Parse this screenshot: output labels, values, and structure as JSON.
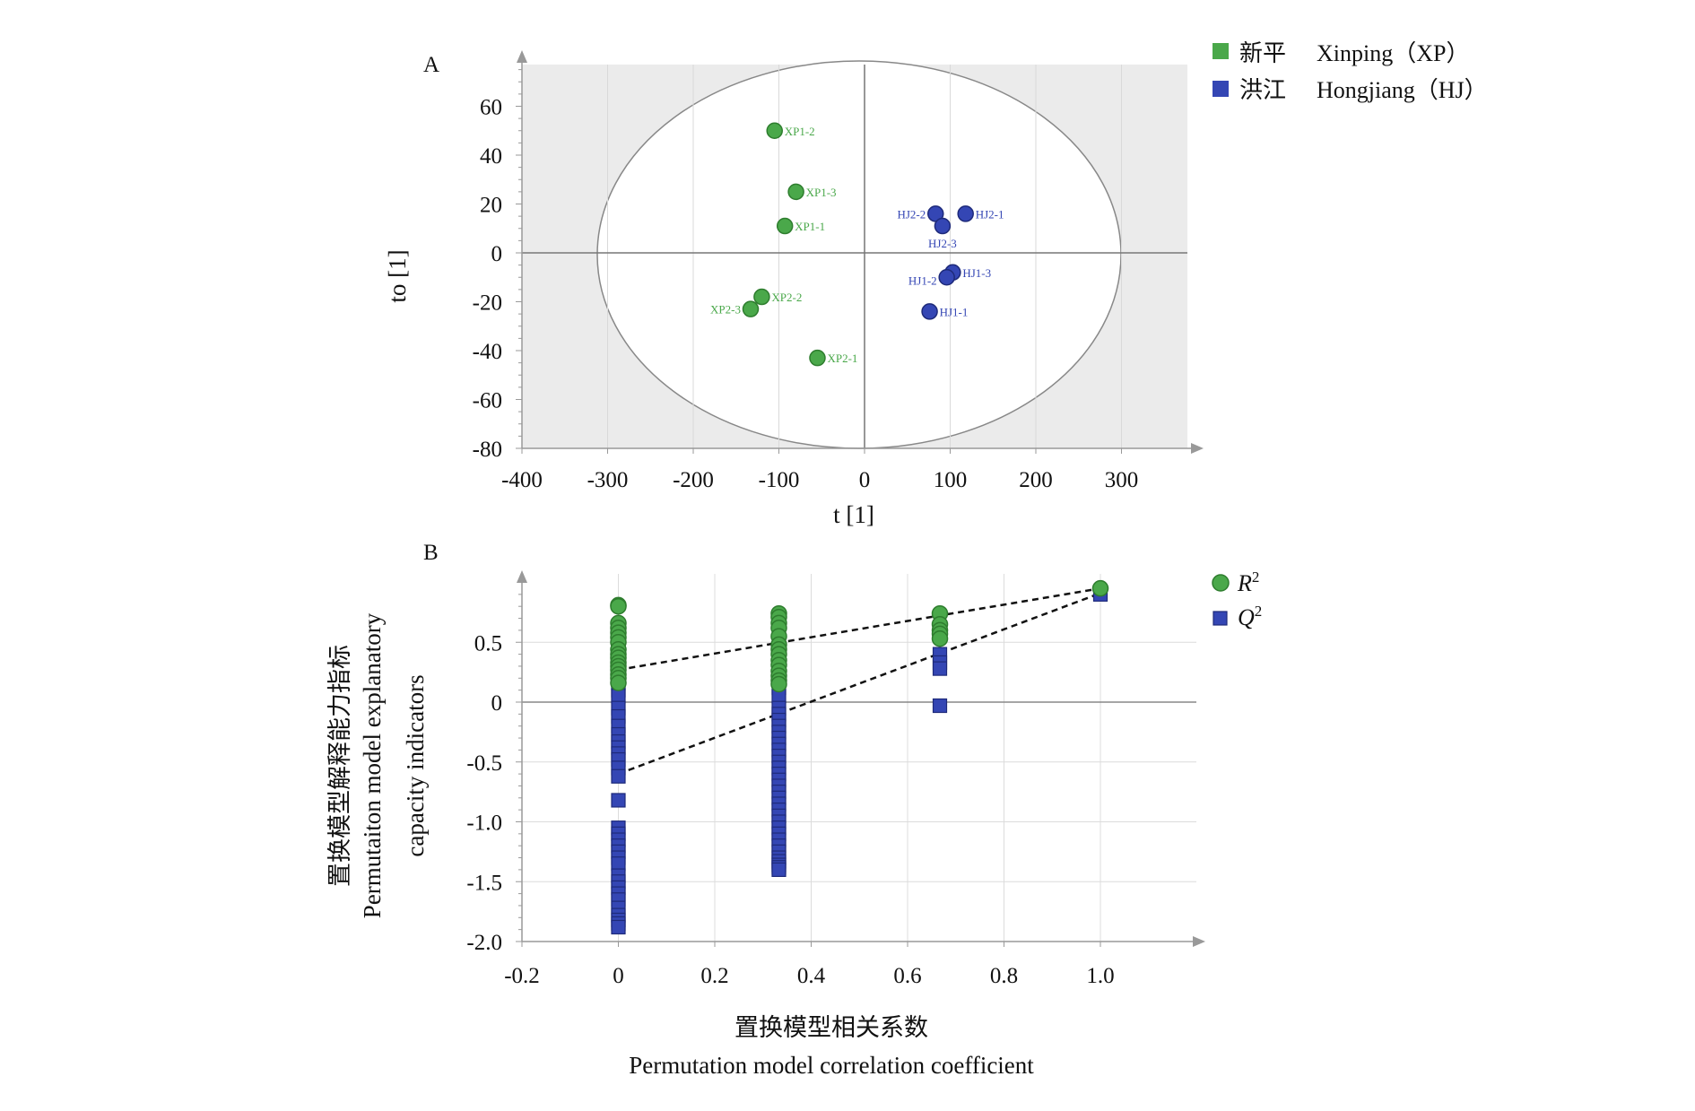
{
  "chart_data": [
    {
      "panel": "A",
      "type": "scatter",
      "xlabel": "t [1]",
      "ylabel": "to [1]",
      "xlim": [
        -400,
        400
      ],
      "ylim": [
        -80,
        80
      ],
      "xticks": [
        "-400",
        "-300",
        "-200",
        "-100",
        "0",
        "100",
        "200",
        "300"
      ],
      "yticks": [
        "60",
        "40",
        "20",
        "0",
        "-20",
        "-40",
        "-60",
        "-80"
      ],
      "legend": [
        {
          "label": "新平",
          "label2": "Xinping（XP）",
          "color": "#4aa84a"
        },
        {
          "label": "洪江",
          "label2": "Hongjiang（HJ）",
          "color": "#3446b4"
        }
      ],
      "series": [
        {
          "name": "Xinping",
          "color": "#4aa84a",
          "points": [
            {
              "label": "XP1-2",
              "x": -105,
              "y": 50
            },
            {
              "label": "XP1-3",
              "x": -80,
              "y": 25
            },
            {
              "label": "XP1-1",
              "x": -93,
              "y": 11
            },
            {
              "label": "XP2-2",
              "x": -120,
              "y": -18
            },
            {
              "label": "XP2-3",
              "x": -133,
              "y": -23
            },
            {
              "label": "XP2-1",
              "x": -55,
              "y": -43
            }
          ]
        },
        {
          "name": "Hongjiang",
          "color": "#3446b4",
          "points": [
            {
              "label": "HJ2-1",
              "x": 118,
              "y": 16
            },
            {
              "label": "HJ2-2",
              "x": 83,
              "y": 16
            },
            {
              "label": "HJ2-3",
              "x": 91,
              "y": 11
            },
            {
              "label": "HJ1-3",
              "x": 103,
              "y": -8
            },
            {
              "label": "HJ1-2",
              "x": 96,
              "y": -10
            },
            {
              "label": "HJ1-1",
              "x": 76,
              "y": -24
            }
          ]
        }
      ]
    },
    {
      "panel": "B",
      "type": "scatter",
      "xlabel": "置换模型相关系数",
      "xlabel2": "Permutation model correlation coefficient",
      "ylabel": "置换模型解释能力指标",
      "ylabel2": "Permutaiton model explanatory",
      "ylabel3": "capacity indicators",
      "xlim": [
        -0.2,
        1.2
      ],
      "ylim": [
        -2.0,
        1.0
      ],
      "xticks": [
        "-0.2",
        "0",
        "0.2",
        "0.4",
        "0.6",
        "0.8",
        "1.0"
      ],
      "yticks": [
        "0.5",
        "0",
        "-0.5",
        "-1.0",
        "-1.5",
        "-2.0"
      ],
      "legend": [
        {
          "label": "R",
          "sup": "2",
          "color": "#4aa84a",
          "marker": "circle"
        },
        {
          "label": "Q",
          "sup": "2",
          "color": "#3446b4",
          "marker": "square"
        }
      ],
      "series": [
        {
          "name": "R2",
          "color": "#4aa84a",
          "marker": "circle",
          "x": [
            0,
            0,
            0,
            0,
            0,
            0,
            0,
            0,
            0,
            0,
            0,
            0,
            0,
            0,
            0,
            0,
            0.333,
            0.333,
            0.333,
            0.333,
            0.333,
            0.333,
            0.333,
            0.333,
            0.333,
            0.333,
            0.333,
            0.333,
            0.333,
            0.333,
            0.667,
            0.667,
            0.667,
            0.667,
            0.667,
            1.0
          ],
          "y": [
            0.81,
            0.8,
            0.66,
            0.62,
            0.58,
            0.54,
            0.5,
            0.44,
            0.4,
            0.37,
            0.33,
            0.3,
            0.27,
            0.23,
            0.2,
            0.16,
            0.74,
            0.71,
            0.66,
            0.62,
            0.55,
            0.48,
            0.44,
            0.4,
            0.35,
            0.31,
            0.26,
            0.22,
            0.18,
            0.15,
            0.74,
            0.65,
            0.6,
            0.57,
            0.53,
            0.95
          ]
        },
        {
          "name": "Q2",
          "color": "#3446b4",
          "marker": "square",
          "x": [
            0,
            0,
            0,
            0,
            0,
            0,
            0,
            0,
            0,
            0,
            0,
            0,
            0,
            0,
            0,
            0,
            0,
            0,
            0,
            0,
            0,
            0,
            0,
            0,
            0,
            0,
            0,
            0,
            0,
            0,
            0,
            0,
            0,
            0,
            0,
            0,
            0.333,
            0.333,
            0.333,
            0.333,
            0.333,
            0.333,
            0.333,
            0.333,
            0.333,
            0.333,
            0.333,
            0.333,
            0.333,
            0.333,
            0.333,
            0.333,
            0.333,
            0.333,
            0.333,
            0.333,
            0.333,
            0.333,
            0.333,
            0.333,
            0.333,
            0.333,
            0.333,
            0.333,
            0.333,
            0.333,
            0.333,
            0.333,
            0.333,
            0.333,
            0.333,
            0.333,
            0.667,
            0.667,
            0.667,
            0.667,
            1.0
          ],
          "y": [
            0.43,
            0.38,
            0.33,
            0.28,
            0.22,
            0.16,
            0.1,
            0.05,
            -0.05,
            -0.12,
            -0.2,
            -0.27,
            -0.33,
            -0.38,
            -0.43,
            -0.48,
            -0.55,
            -0.62,
            -0.82,
            -1.05,
            -1.1,
            -1.15,
            -1.2,
            -1.25,
            -1.3,
            -1.35,
            -1.45,
            -1.5,
            -1.55,
            -1.6,
            -1.65,
            -1.72,
            -1.78,
            -1.82,
            -1.85,
            -1.88,
            0.36,
            0.3,
            0.24,
            0.18,
            0.12,
            0.05,
            -0.05,
            -0.1,
            -0.15,
            -0.2,
            -0.25,
            -0.3,
            -0.35,
            -0.4,
            -0.45,
            -0.5,
            -0.55,
            -0.6,
            -0.65,
            -0.7,
            -0.75,
            -0.8,
            -0.85,
            -0.9,
            -0.95,
            -1.0,
            -1.05,
            -1.1,
            -1.15,
            -1.2,
            -1.25,
            -1.3,
            -1.33,
            -1.36,
            -1.38,
            -1.4,
            0.4,
            0.33,
            0.28,
            -0.03,
            0.9
          ]
        }
      ],
      "regression_lines": [
        {
          "name": "R2",
          "x": [
            0,
            1.0
          ],
          "y": [
            0.27,
            0.95
          ]
        },
        {
          "name": "Q2",
          "x": [
            0,
            1.0
          ],
          "y": [
            -0.6,
            0.91
          ]
        }
      ]
    }
  ]
}
